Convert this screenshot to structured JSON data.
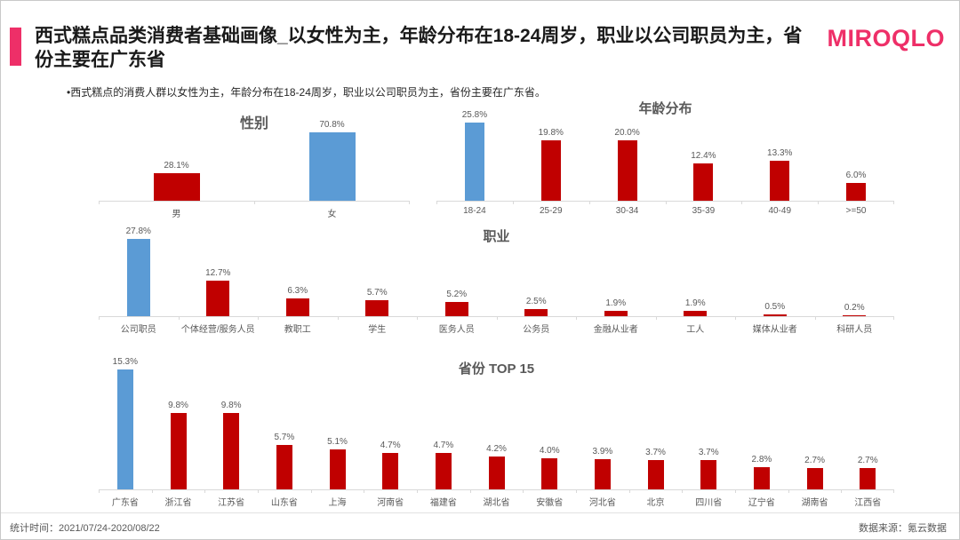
{
  "header": {
    "title": "西式糕点品类消费者基础画像_以女性为主，年龄分布在18-24周岁，职业以公司职员为主，省份主要在广东省",
    "logo": "MIROQLO",
    "bullet": "•西式糕点的消费人群以女性为主，年龄分布在18-24周岁，职业以公司职员为主，省份主要在广东省。"
  },
  "footer": {
    "stat_time": "统计时间：2021/07/24-2020/08/22",
    "source": "数据来源：氪云数据"
  },
  "colors": {
    "bar_red": "#c00000",
    "bar_highlight_blue": "#5b9bd5",
    "brand_pink": "#ee2f68",
    "axis_gray": "#d9d9d9",
    "label_gray": "#595959"
  },
  "chart_data": [
    {
      "id": "gender",
      "type": "bar",
      "title": "性别",
      "categories": [
        "男",
        "女"
      ],
      "values": [
        28.1,
        70.8
      ],
      "unit": "%",
      "highlight_index": 1,
      "ylim": [
        0,
        100
      ],
      "grid": false,
      "legend": false
    },
    {
      "id": "age",
      "type": "bar",
      "title": "年龄分布",
      "categories": [
        "18-24",
        "25-29",
        "30-34",
        "35-39",
        "40-49",
        ">=50"
      ],
      "values": [
        25.8,
        19.8,
        20.0,
        12.4,
        13.3,
        6.0
      ],
      "unit": "%",
      "highlight_index": 0,
      "ylim": [
        0,
        30
      ],
      "grid": false,
      "legend": false
    },
    {
      "id": "occupation",
      "type": "bar",
      "title": "职业",
      "categories": [
        "公司职员",
        "个体经营/服务人员",
        "教职工",
        "学生",
        "医务人员",
        "公务员",
        "金融从业者",
        "工人",
        "媒体从业者",
        "科研人员"
      ],
      "values": [
        27.8,
        12.7,
        6.3,
        5.7,
        5.2,
        2.5,
        1.9,
        1.9,
        0.5,
        0.2
      ],
      "unit": "%",
      "highlight_index": 0,
      "ylim": [
        0,
        30
      ],
      "grid": false,
      "legend": false
    },
    {
      "id": "province",
      "type": "bar",
      "title": "省份 TOP 15",
      "categories": [
        "广东省",
        "浙江省",
        "江苏省",
        "山东省",
        "上海",
        "河南省",
        "福建省",
        "湖北省",
        "安徽省",
        "河北省",
        "北京",
        "四川省",
        "辽宁省",
        "湖南省",
        "江西省"
      ],
      "values": [
        15.3,
        9.8,
        9.8,
        5.7,
        5.1,
        4.7,
        4.7,
        4.2,
        4.0,
        3.9,
        3.7,
        3.7,
        2.8,
        2.7,
        2.7
      ],
      "unit": "%",
      "highlight_index": 0,
      "ylim": [
        0,
        17
      ],
      "grid": false,
      "legend": false
    }
  ]
}
